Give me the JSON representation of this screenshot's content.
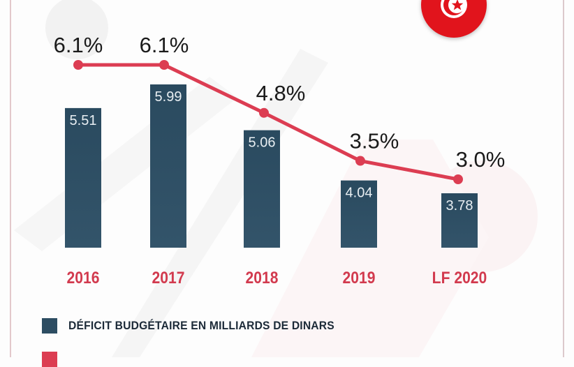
{
  "flag": {
    "icon": "tunisia-flag-icon",
    "colors": {
      "red": "#e1141c",
      "white": "#ffffff"
    }
  },
  "colors": {
    "bar": "#2d4d62",
    "line": "#dc3d52",
    "category": "#d23a4e",
    "legend_text": "#1c2a38",
    "pct_label": "#1a1a1a",
    "bar_label": "#e8eef2"
  },
  "chart_data": {
    "type": "bar",
    "categories": [
      "2016",
      "2017",
      "2018",
      "2019",
      "LF 2020"
    ],
    "series": [
      {
        "name": "DÉFICIT BUDGÉTAIRE EN MILLIARDS DE DINARS",
        "type": "bar",
        "values": [
          5.51,
          5.99,
          5.06,
          4.04,
          3.78
        ],
        "labels": [
          "5.51",
          "5.99",
          "5.06",
          "4.04",
          "3.78"
        ],
        "color": "#2d4d62"
      },
      {
        "name": "",
        "type": "line",
        "values": [
          6.1,
          6.1,
          4.8,
          3.5,
          3.0
        ],
        "labels": [
          "6.1%",
          "6.1%",
          "4.8%",
          "3.5%",
          "3.0%"
        ],
        "color": "#dc3d52"
      }
    ],
    "title": "",
    "xlabel": "",
    "ylabel": "",
    "grid": false,
    "legend": "bottom-left"
  },
  "legend": [
    {
      "label": "DÉFICIT BUDGÉTAIRE EN MILLIARDS DE DINARS",
      "color": "#2d4d62"
    },
    {
      "label": "",
      "color": "#dc3d52"
    }
  ]
}
